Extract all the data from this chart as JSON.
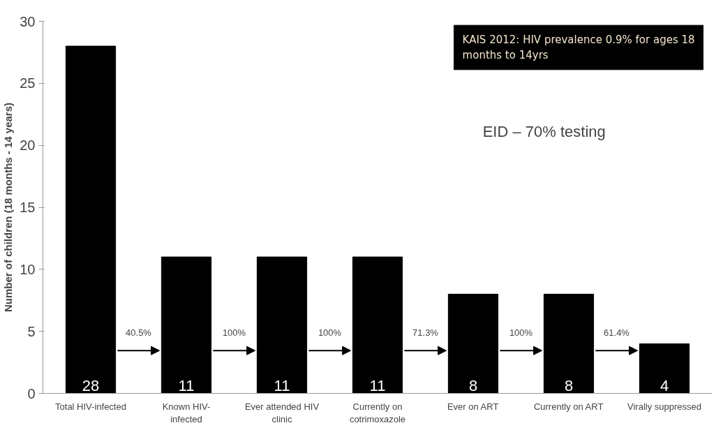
{
  "chart_data": {
    "type": "bar",
    "ylabel": "Number of children (18 months - 14 years)",
    "categories": [
      "Total HIV-infected",
      "Known HIV-\ninfected",
      "Ever attended HIV\nclinic",
      "Currently on\ncotrimoxazole",
      "Ever on ART",
      "Currently on ART",
      "Virally suppressed"
    ],
    "values": [
      28,
      11,
      11,
      11,
      8,
      8,
      4
    ],
    "color": "#000000",
    "data_labels": true,
    "ylim": [
      0,
      30
    ],
    "yticks": [
      0,
      5,
      10,
      15,
      20,
      25,
      30
    ],
    "grid": false,
    "annotations": [
      "KAIS 2012: HIV prevalence 0.9% for ages 18\nmonths to 14yrs",
      "EID – 70% testing",
      "40.5%",
      "100%",
      "100%",
      "71.3%",
      "100%",
      "61.4%"
    ]
  }
}
